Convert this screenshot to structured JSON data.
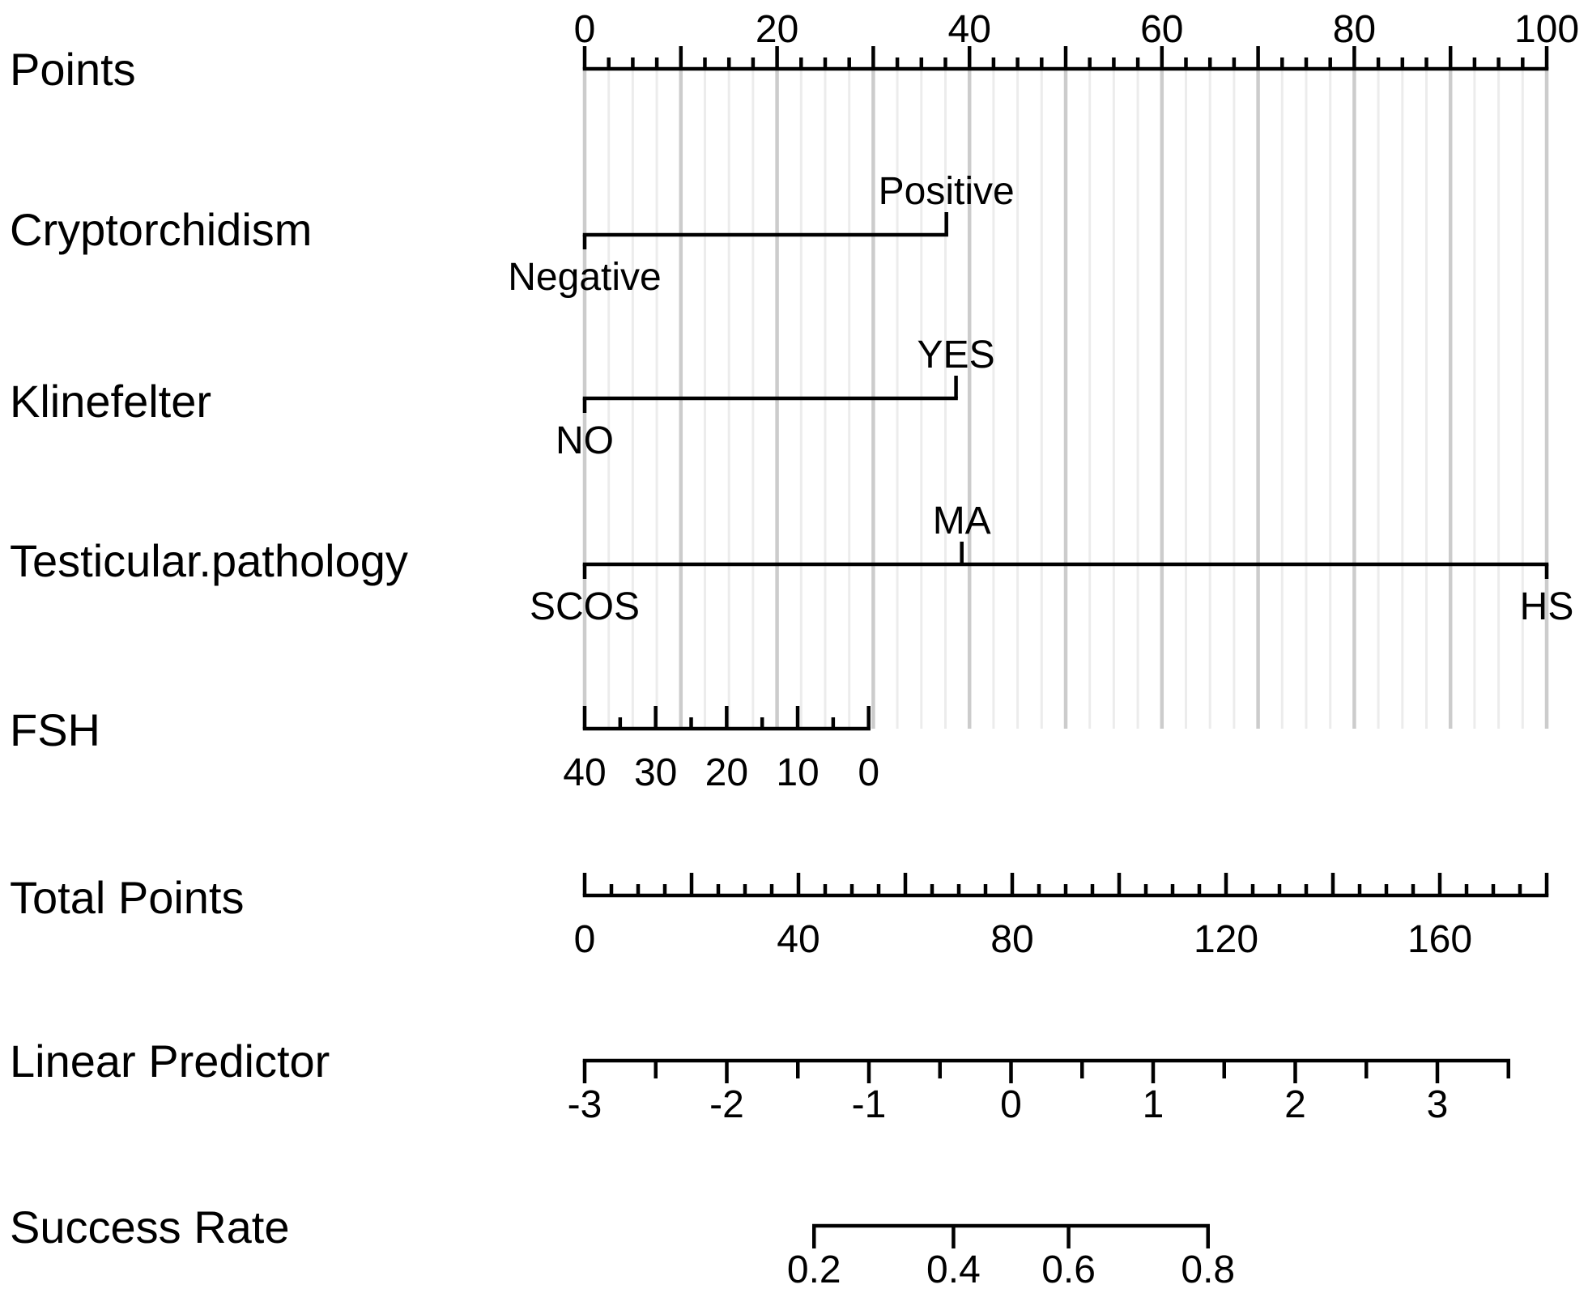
{
  "chart_data": {
    "type": "nomogram",
    "points_scale": {
      "label": "Points",
      "range": [
        0,
        100
      ],
      "tick_labels": [
        "0",
        "20",
        "40",
        "60",
        "80",
        "100"
      ],
      "major_step": 10,
      "minor_step": 2.5
    },
    "predictors": [
      {
        "label": "Cryptorchidism",
        "levels": [
          {
            "name": "Negative",
            "points": 0
          },
          {
            "name": "Positive",
            "points": 37.6
          }
        ]
      },
      {
        "label": "Klinefelter",
        "levels": [
          {
            "name": "NO",
            "points": 0
          },
          {
            "name": "YES",
            "points": 38.6
          }
        ]
      },
      {
        "label": "Testicular.pathology",
        "levels": [
          {
            "name": "SCOS",
            "points": 0
          },
          {
            "name": "MA",
            "points": 39.2
          },
          {
            "name": "HS",
            "points": 100
          }
        ]
      },
      {
        "label": "FSH",
        "scale_values": [
          40,
          35,
          30,
          25,
          20,
          15,
          10,
          5,
          0
        ],
        "scale_points": [
          0,
          3.69,
          7.38,
          11.07,
          14.76,
          18.45,
          22.14,
          25.83,
          29.52
        ],
        "tick_labels": [
          "40",
          "30",
          "20",
          "10",
          "0"
        ]
      }
    ],
    "total_points": {
      "label": "Total Points",
      "range": [
        0,
        180
      ],
      "tick_labels": [
        "0",
        "40",
        "80",
        "120",
        "160"
      ],
      "major_step": 20,
      "minor_step": 5
    },
    "linear_predictor": {
      "label": "Linear Predictor",
      "range": [
        -3,
        3.5
      ],
      "tick_labels": [
        "-3",
        "-2",
        "-1",
        "0",
        "1",
        "2",
        "3"
      ],
      "minor_step": 0.5
    },
    "success_rate": {
      "label": "Success Rate",
      "values": [
        0.2,
        0.4,
        0.6,
        0.8
      ],
      "tick_labels": [
        "0.2",
        "0.4",
        "0.6",
        "0.8"
      ],
      "linear_predictor_at": [
        -1.386,
        -0.405,
        0.405,
        1.386
      ]
    }
  }
}
